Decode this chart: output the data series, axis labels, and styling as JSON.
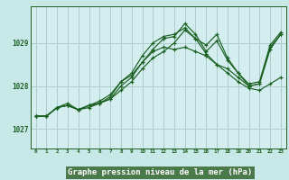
{
  "bg_color": "#c8e8e8",
  "plot_bg_color": "#d4eef0",
  "grid_color": "#aacccc",
  "line_color": "#1a6020",
  "xlabel": "Graphe pression niveau de la mer (hPa)",
  "xlabel_fontsize": 6.5,
  "xlabel_bg": "#4a7a4a",
  "xticks": [
    0,
    1,
    2,
    3,
    4,
    5,
    6,
    7,
    8,
    9,
    10,
    11,
    12,
    13,
    14,
    15,
    16,
    17,
    18,
    19,
    20,
    21,
    22,
    23
  ],
  "yticks": [
    1027,
    1028,
    1029
  ],
  "ylim": [
    1026.55,
    1029.85
  ],
  "xlim": [
    -0.5,
    23.5
  ],
  "series": [
    [
      1027.3,
      1027.3,
      1027.5,
      1027.55,
      1027.45,
      1027.55,
      1027.6,
      1027.7,
      1028.0,
      1028.2,
      1028.55,
      1028.8,
      1028.9,
      1028.85,
      1028.9,
      1028.8,
      1028.7,
      1028.5,
      1028.3,
      1028.1,
      1027.95,
      1027.9,
      1028.05,
      1028.2
    ],
    [
      1027.3,
      1027.3,
      1027.5,
      1027.55,
      1027.45,
      1027.5,
      1027.6,
      1027.75,
      1028.1,
      1028.3,
      1028.7,
      1029.0,
      1029.15,
      1029.2,
      1029.35,
      1029.1,
      1028.75,
      1028.5,
      1028.4,
      1028.2,
      1028.0,
      1028.05,
      1028.9,
      1029.2
    ],
    [
      1027.3,
      1027.3,
      1027.5,
      1027.6,
      1027.45,
      1027.55,
      1027.65,
      1027.8,
      1028.1,
      1028.25,
      1028.55,
      1028.85,
      1029.1,
      1029.15,
      1029.45,
      1029.2,
      1028.8,
      1029.05,
      1028.6,
      1028.3,
      1028.05,
      1028.1,
      1028.95,
      1029.25
    ],
    [
      1027.3,
      1027.3,
      1027.5,
      1027.55,
      1027.45,
      1027.55,
      1027.6,
      1027.7,
      1027.9,
      1028.1,
      1028.4,
      1028.65,
      1028.8,
      1029.0,
      1029.3,
      1029.1,
      1028.95,
      1029.2,
      1028.65,
      1028.3,
      1028.0,
      1028.05,
      1028.85,
      1029.2
    ]
  ]
}
